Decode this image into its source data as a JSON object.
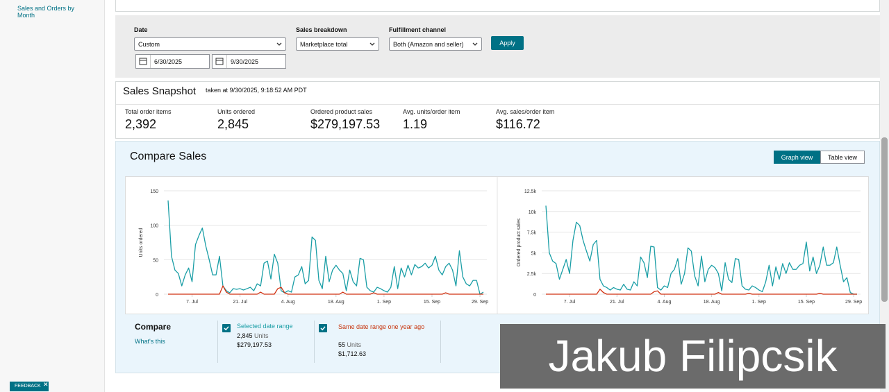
{
  "sidebar": {
    "link": "Sales and Orders by Month"
  },
  "filters": {
    "date_label": "Date",
    "date_value": "Custom",
    "start": "6/30/2025",
    "end": "9/30/2025",
    "breakdown_label": "Sales breakdown",
    "breakdown_value": "Marketplace total",
    "channel_label": "Fulfillment channel",
    "channel_value": "Both (Amazon and seller)",
    "apply": "Apply"
  },
  "snapshot": {
    "title": "Sales Snapshot",
    "taken": "taken at 9/30/2025, 9:18:52 AM PDT",
    "metrics": [
      {
        "label": "Total order items",
        "value": "2,392"
      },
      {
        "label": "Units ordered",
        "value": "2,845"
      },
      {
        "label": "Ordered product sales",
        "value": "$279,197.53"
      },
      {
        "label": "Avg. units/order item",
        "value": "1.19"
      },
      {
        "label": "Avg. sales/order item",
        "value": "$116.72"
      }
    ]
  },
  "compare_sales": {
    "title": "Compare Sales",
    "views": [
      "Graph view",
      "Table view"
    ]
  },
  "chart_data": [
    {
      "type": "line",
      "ylabel": "Units ordered",
      "categories": [
        null,
        null,
        null,
        null,
        null,
        null,
        null,
        "7. Jul",
        null,
        null,
        null,
        null,
        null,
        null,
        null,
        null,
        null,
        null,
        null,
        null,
        null,
        "21. Jul",
        null,
        null,
        null,
        null,
        null,
        null,
        null,
        null,
        null,
        null,
        null,
        null,
        null,
        "4. Aug",
        null,
        null,
        null,
        null,
        null,
        null,
        null,
        null,
        null,
        null,
        null,
        null,
        null,
        "18. Aug",
        null,
        null,
        null,
        null,
        null,
        null,
        null,
        null,
        null,
        null,
        null,
        null,
        null,
        "1. Sep",
        null,
        null,
        null,
        null,
        null,
        null,
        null,
        null,
        null,
        null,
        null,
        null,
        null,
        "15. Sep",
        null,
        null,
        null,
        null,
        null,
        null,
        null,
        null,
        null,
        null,
        null,
        null,
        null,
        "29. Sep",
        null
      ],
      "series": [
        {
          "name": "Selected date range",
          "color": "#1a9ea6",
          "values": [
            136,
            55,
            35,
            30,
            12,
            28,
            38,
            18,
            72,
            85,
            96,
            70,
            50,
            28,
            28,
            55,
            12,
            5,
            2,
            8,
            7,
            8,
            6,
            8,
            10,
            5,
            15,
            12,
            45,
            48,
            22,
            58,
            45,
            5,
            2,
            5,
            3,
            25,
            28,
            40,
            15,
            20,
            83,
            78,
            20,
            8,
            55,
            18,
            35,
            42,
            35,
            30,
            5,
            35,
            18,
            12,
            52,
            50,
            10,
            5,
            3,
            10,
            8,
            5,
            3,
            10,
            40,
            8,
            38,
            25,
            42,
            28,
            43,
            38,
            40,
            45,
            38,
            42,
            55,
            35,
            28,
            40,
            45,
            35,
            12,
            63,
            25,
            15,
            12,
            20,
            20,
            0,
            3
          ]
        },
        {
          "name": "Same date range one year ago",
          "color": "#d13212",
          "values": [
            0,
            0,
            0,
            0,
            0,
            0,
            0,
            0,
            0,
            0,
            0,
            0,
            0,
            0,
            0,
            0,
            12,
            3,
            0,
            0,
            0,
            0,
            0,
            0,
            0,
            0,
            0,
            3,
            0,
            0,
            0,
            0,
            8,
            10,
            2,
            0,
            0,
            0,
            0,
            0,
            0,
            0,
            0,
            0,
            0,
            0,
            0,
            0,
            0,
            0,
            0,
            3,
            0,
            0,
            0,
            0,
            0,
            0,
            0,
            0,
            2,
            0,
            0,
            0,
            0,
            0,
            0,
            0,
            0,
            0,
            0,
            0,
            0,
            0,
            0,
            0,
            0,
            0,
            0,
            0,
            0,
            2,
            0,
            0,
            0,
            0,
            0,
            0,
            0,
            0,
            0,
            0,
            0
          ]
        }
      ],
      "ylim": [
        0,
        150
      ],
      "yticks": [
        0,
        50,
        100,
        150
      ],
      "grid": true
    },
    {
      "type": "line",
      "ylabel": "Ordered product sales",
      "categories": [
        null,
        null,
        null,
        null,
        null,
        null,
        null,
        "7. Jul",
        null,
        null,
        null,
        null,
        null,
        null,
        null,
        null,
        null,
        null,
        null,
        null,
        null,
        "21. Jul",
        null,
        null,
        null,
        null,
        null,
        null,
        null,
        null,
        null,
        null,
        null,
        null,
        null,
        "4. Aug",
        null,
        null,
        null,
        null,
        null,
        null,
        null,
        null,
        null,
        null,
        null,
        null,
        null,
        "18. Aug",
        null,
        null,
        null,
        null,
        null,
        null,
        null,
        null,
        null,
        null,
        null,
        null,
        null,
        "1. Sep",
        null,
        null,
        null,
        null,
        null,
        null,
        null,
        null,
        null,
        null,
        null,
        null,
        null,
        "15. Sep",
        null,
        null,
        null,
        null,
        null,
        null,
        null,
        null,
        null,
        null,
        null,
        null,
        null,
        "29. Sep",
        null
      ],
      "series": [
        {
          "color": "#1a9ea6",
          "values": [
            10700,
            5000,
            4000,
            3700,
            1800,
            3000,
            4200,
            2500,
            6500,
            8700,
            8300,
            6500,
            5200,
            4000,
            6000,
            6500,
            1800,
            1000,
            800,
            500,
            800,
            600,
            500,
            1200,
            600,
            500,
            1500,
            1000,
            4500,
            3800,
            2000,
            5800,
            5700,
            800,
            500,
            1000,
            800,
            2500,
            3000,
            4300,
            1200,
            2500,
            5600,
            5200,
            2200,
            1000,
            4600,
            1500,
            3000,
            3500,
            3200,
            2500,
            400,
            3800,
            1800,
            1400,
            4300,
            4200,
            1000,
            600,
            500,
            1000,
            800,
            500,
            300,
            1500,
            3500,
            1000,
            3300,
            1800,
            3700,
            2500,
            3800,
            3000,
            3000,
            3500,
            3700,
            6300,
            2800,
            4500,
            2500,
            3500,
            5700,
            3500,
            3500,
            3800,
            5700,
            3500,
            1500,
            2000,
            200,
            0,
            0
          ]
        },
        {
          "color": "#d13212",
          "values": [
            0,
            0,
            0,
            0,
            0,
            0,
            0,
            0,
            0,
            0,
            0,
            0,
            0,
            0,
            0,
            0,
            600,
            200,
            0,
            0,
            0,
            0,
            0,
            0,
            0,
            0,
            0,
            0,
            0,
            0,
            0,
            0,
            300,
            400,
            0,
            0,
            0,
            0,
            0,
            0,
            0,
            0,
            0,
            0,
            0,
            0,
            0,
            0,
            0,
            0,
            0,
            200,
            0,
            0,
            0,
            0,
            0,
            0,
            0,
            0,
            100,
            0,
            0,
            0,
            0,
            0,
            0,
            0,
            0,
            0,
            0,
            0,
            0,
            0,
            0,
            0,
            0,
            0,
            0,
            0,
            0,
            100,
            0,
            0,
            0,
            0,
            0,
            0,
            0,
            0,
            0,
            0,
            0
          ]
        }
      ],
      "ylim": [
        0,
        12500
      ],
      "yticks": [
        0,
        {
          "value": 2500,
          "label": "2.5k"
        },
        {
          "value": 5000,
          "label": "5k"
        },
        {
          "value": 7500,
          "label": "7.5k"
        },
        {
          "value": 10000,
          "label": "10k"
        },
        {
          "value": 12500,
          "label": "12.5k"
        }
      ],
      "grid": true
    }
  ],
  "compare": {
    "title": "Compare",
    "help": "What's this",
    "items": [
      {
        "units": "2,845",
        "units_label": "Units",
        "sales": "$279,197.53"
      },
      {
        "units": "55",
        "units_label": "Units",
        "sales": "$1,712.63"
      }
    ]
  },
  "feedback": "FEEDBACK",
  "watermark": "Jakub Filipcsik"
}
